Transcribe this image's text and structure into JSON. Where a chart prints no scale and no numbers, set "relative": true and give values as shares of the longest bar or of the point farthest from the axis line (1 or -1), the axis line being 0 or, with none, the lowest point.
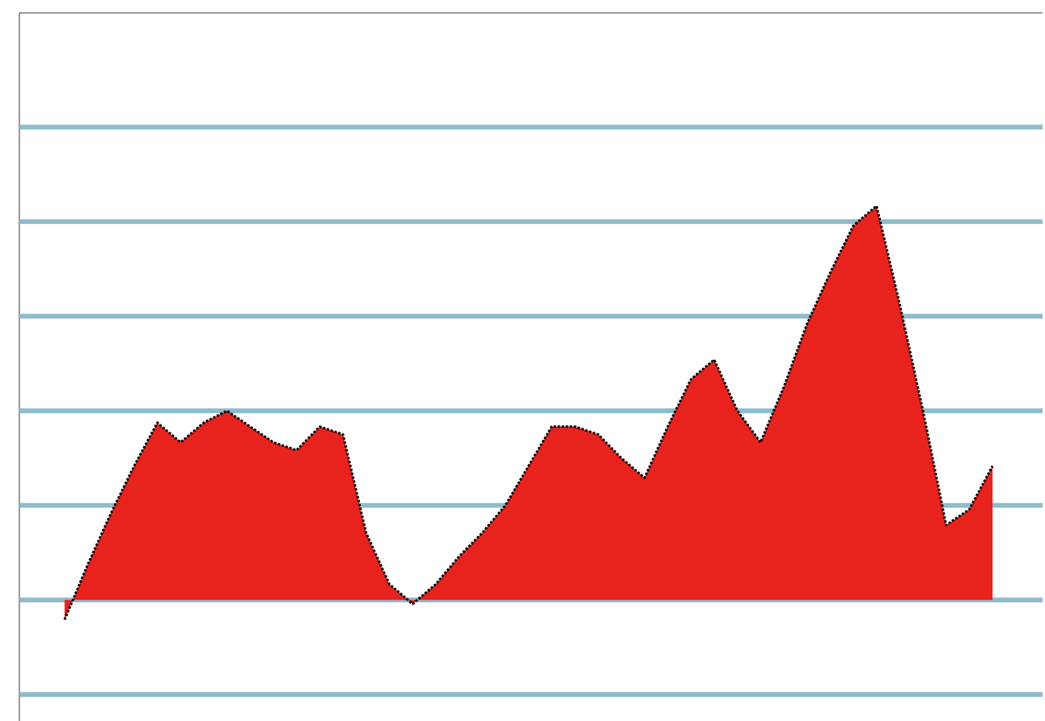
{
  "chart_data": {
    "type": "area",
    "relative": true,
    "line_style": "dotted",
    "ref_lines": [
      {
        "axis": "y",
        "value": -0.24,
        "color": "#8fbccc"
      },
      {
        "axis": "y",
        "value": 0,
        "color": "#8fbccc"
      },
      {
        "axis": "y",
        "value": 0.24,
        "color": "#8fbccc"
      },
      {
        "axis": "y",
        "value": 0.48,
        "color": "#8fbccc"
      },
      {
        "axis": "y",
        "value": 0.72,
        "color": "#8fbccc"
      },
      {
        "axis": "y",
        "value": 0.96,
        "color": "#8fbccc"
      },
      {
        "axis": "y",
        "value": 1.2,
        "color": "#8fbccc"
      }
    ],
    "categories": [
      null,
      null,
      null,
      null,
      null,
      null,
      null,
      null,
      null,
      null,
      null,
      null,
      null,
      null,
      null,
      null,
      null,
      null,
      null,
      null,
      null,
      null,
      null,
      null,
      null,
      null,
      null,
      null,
      null,
      null,
      null,
      null,
      null,
      null,
      null,
      null,
      null,
      null,
      null,
      null,
      null
    ],
    "series": [
      {
        "color": "#e8231e",
        "values": [
          -0.05,
          0.09,
          0.22,
          0.34,
          0.45,
          0.4,
          0.45,
          0.48,
          0.44,
          0.4,
          0.38,
          0.44,
          0.42,
          0.17,
          0.04,
          -0.01,
          0.04,
          0.11,
          0.17,
          0.24,
          0.34,
          0.44,
          0.44,
          0.42,
          0.36,
          0.31,
          0.44,
          0.56,
          0.61,
          0.48,
          0.4,
          0.54,
          0.7,
          0.83,
          0.95,
          1.0,
          0.75,
          0.48,
          0.19,
          0.23,
          0.34
        ]
      }
    ]
  }
}
